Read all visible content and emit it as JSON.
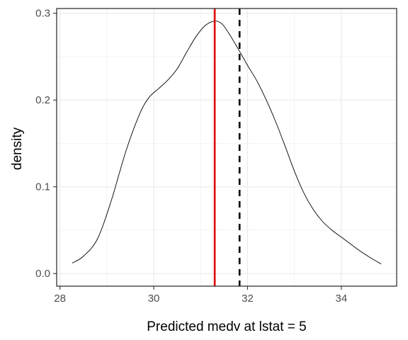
{
  "chart_data": {
    "type": "line",
    "title": "",
    "xlabel": "Predicted medv at lstat = 5",
    "ylabel": "density",
    "xlim": [
      28,
      35
    ],
    "ylim": [
      0,
      0.3
    ],
    "x_ticks": [
      28,
      30,
      32,
      34
    ],
    "y_ticks": [
      0.0,
      0.1,
      0.2,
      0.3
    ],
    "x_tick_labels": [
      "28",
      "30",
      "32",
      "34"
    ],
    "y_tick_labels": [
      "0.0",
      "0.1",
      "0.2",
      "0.3"
    ],
    "grid": true,
    "legend": "none",
    "series": [
      {
        "x": [
          28.26,
          28.5,
          28.8,
          29.1,
          29.4,
          29.7,
          29.9,
          30.1,
          30.3,
          30.5,
          30.7,
          30.9,
          31.1,
          31.3,
          31.45,
          31.6,
          31.8,
          32.0,
          32.2,
          32.4,
          32.6,
          32.8,
          33.0,
          33.2,
          33.4,
          33.6,
          33.8,
          34.0,
          34.2,
          34.4,
          34.6,
          34.85
        ],
        "y": [
          0.012,
          0.02,
          0.04,
          0.085,
          0.14,
          0.184,
          0.203,
          0.213,
          0.223,
          0.236,
          0.255,
          0.273,
          0.286,
          0.291,
          0.288,
          0.277,
          0.259,
          0.24,
          0.222,
          0.2,
          0.175,
          0.147,
          0.118,
          0.093,
          0.074,
          0.06,
          0.05,
          0.042,
          0.034,
          0.026,
          0.019,
          0.011
        ],
        "color": "#000000"
      }
    ],
    "vlines": [
      {
        "x": 31.3,
        "color": "#e00000",
        "style": "solid"
      },
      {
        "x": 31.83,
        "color": "#000000",
        "style": "dashed"
      }
    ]
  }
}
